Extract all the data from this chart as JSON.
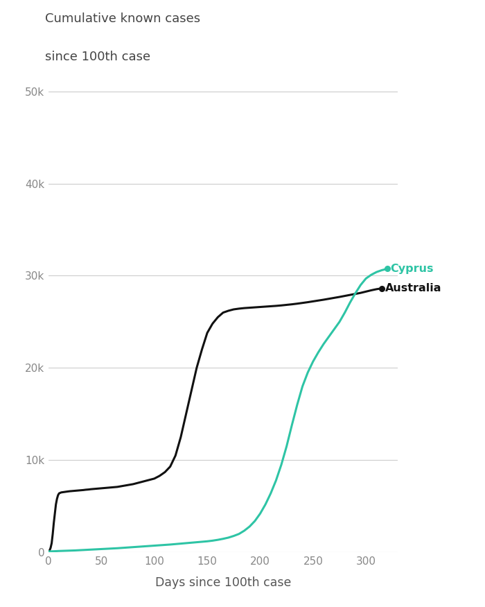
{
  "title_line1": "Cumulative known cases",
  "title_line2": "since 100th case",
  "xlabel": "Days since 100th case",
  "ylabel": "",
  "xlim": [
    0,
    330
  ],
  "ylim": [
    0,
    52000
  ],
  "yticks": [
    0,
    10000,
    20000,
    30000,
    40000,
    50000
  ],
  "ytick_labels": [
    "0",
    "10k",
    "20k",
    "30k",
    "40k",
    "50k"
  ],
  "xticks": [
    0,
    50,
    100,
    150,
    200,
    250,
    300
  ],
  "title_color": "#444444",
  "title_fontsize": 13,
  "axis_label_color": "#555555",
  "tick_color": "#888888",
  "grid_color": "#cccccc",
  "australia_color": "#111111",
  "cyprus_color": "#2EC4A5",
  "line_width": 2.2,
  "background_color": "#ffffff",
  "australia_x": [
    0,
    1,
    2,
    3,
    4,
    5,
    6,
    7,
    8,
    9,
    10,
    12,
    15,
    18,
    20,
    22,
    25,
    28,
    30,
    33,
    35,
    38,
    40,
    45,
    50,
    55,
    60,
    65,
    70,
    75,
    80,
    85,
    90,
    95,
    100,
    105,
    110,
    115,
    120,
    125,
    130,
    135,
    140,
    145,
    150,
    155,
    160,
    165,
    170,
    175,
    180,
    185,
    190,
    195,
    200,
    205,
    210,
    215,
    220,
    225,
    230,
    235,
    240,
    245,
    250,
    255,
    260,
    265,
    270,
    275,
    280,
    285,
    290,
    295,
    300,
    305,
    310,
    315
  ],
  "australia_y": [
    100,
    200,
    500,
    1000,
    2000,
    3200,
    4200,
    5200,
    5800,
    6200,
    6400,
    6500,
    6550,
    6600,
    6630,
    6650,
    6680,
    6710,
    6730,
    6760,
    6790,
    6820,
    6850,
    6900,
    6950,
    7000,
    7050,
    7100,
    7200,
    7300,
    7400,
    7550,
    7700,
    7850,
    8000,
    8300,
    8700,
    9300,
    10500,
    12500,
    15000,
    17500,
    20000,
    22000,
    23800,
    24800,
    25500,
    26000,
    26200,
    26350,
    26430,
    26490,
    26530,
    26570,
    26610,
    26650,
    26690,
    26730,
    26780,
    26840,
    26900,
    26970,
    27050,
    27130,
    27220,
    27310,
    27400,
    27500,
    27600,
    27700,
    27810,
    27920,
    28030,
    28140,
    28280,
    28420,
    28540,
    28630
  ],
  "cyprus_x": [
    0,
    5,
    10,
    15,
    20,
    25,
    30,
    35,
    40,
    45,
    50,
    55,
    60,
    65,
    70,
    75,
    80,
    85,
    90,
    95,
    100,
    105,
    110,
    115,
    120,
    125,
    130,
    135,
    140,
    145,
    150,
    155,
    160,
    165,
    170,
    175,
    180,
    185,
    190,
    195,
    200,
    205,
    210,
    215,
    220,
    225,
    230,
    235,
    240,
    245,
    250,
    255,
    260,
    265,
    270,
    275,
    280,
    285,
    290,
    295,
    300,
    305,
    310,
    315,
    320
  ],
  "cyprus_y": [
    100,
    120,
    150,
    170,
    190,
    210,
    240,
    270,
    300,
    330,
    360,
    390,
    420,
    450,
    490,
    530,
    570,
    610,
    650,
    690,
    730,
    770,
    810,
    850,
    900,
    950,
    1000,
    1050,
    1100,
    1150,
    1200,
    1270,
    1360,
    1470,
    1600,
    1780,
    2000,
    2350,
    2800,
    3400,
    4200,
    5200,
    6400,
    7800,
    9500,
    11500,
    13800,
    16000,
    18000,
    19500,
    20700,
    21700,
    22600,
    23400,
    24200,
    25000,
    26000,
    27100,
    28100,
    29000,
    29700,
    30100,
    30400,
    30600,
    30750
  ]
}
